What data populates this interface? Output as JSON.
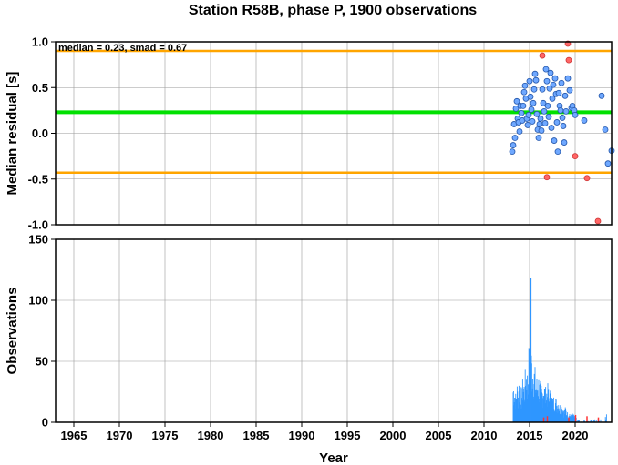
{
  "chart_data": [
    {
      "type": "scatter",
      "title": "Station R58B, phase P, 1900 observations",
      "ylabel": "Median residual [s]",
      "xlim": [
        1963,
        2024
      ],
      "ylim": [
        -1.0,
        1.0
      ],
      "yticks": [
        "1.0",
        "0.5",
        "0.0",
        "-0.5",
        "-1.0"
      ],
      "ytick_values": [
        1.0,
        0.5,
        0.0,
        -0.5,
        -1.0
      ],
      "annotation": "median = 0.23, smad = 0.67",
      "median": 0.23,
      "bounds": [
        0.9,
        -0.43
      ],
      "grid": true,
      "colors": {
        "median_line": "#00e000",
        "bound_lines": "#ffa500",
        "inlier": "#6fa8ff",
        "outlier": "#ff6666"
      },
      "series": [
        {
          "role": "inliers",
          "points": [
            [
              2013.1,
              -0.2
            ],
            [
              2013.2,
              -0.13
            ],
            [
              2013.3,
              0.1
            ],
            [
              2013.4,
              -0.05
            ],
            [
              2013.5,
              0.27
            ],
            [
              2013.6,
              0.35
            ],
            [
              2013.7,
              0.16
            ],
            [
              2013.8,
              0.12
            ],
            [
              2013.9,
              0.02
            ],
            [
              2014.0,
              0.3
            ],
            [
              2014.1,
              0.22
            ],
            [
              2014.2,
              0.14
            ],
            [
              2014.3,
              0.3
            ],
            [
              2014.4,
              0.45
            ],
            [
              2014.5,
              0.52
            ],
            [
              2014.6,
              0.38
            ],
            [
              2014.7,
              0.16
            ],
            [
              2014.8,
              0.09
            ],
            [
              2014.9,
              0.2
            ],
            [
              2015.0,
              0.57
            ],
            [
              2015.1,
              0.4
            ],
            [
              2015.2,
              0.26
            ],
            [
              2015.3,
              0.13
            ],
            [
              2015.4,
              0.33
            ],
            [
              2015.5,
              0.48
            ],
            [
              2015.6,
              0.65
            ],
            [
              2015.7,
              0.58
            ],
            [
              2015.8,
              0.21
            ],
            [
              2015.9,
              0.04
            ],
            [
              2016.0,
              -0.05
            ],
            [
              2016.1,
              0.1
            ],
            [
              2016.2,
              0.16
            ],
            [
              2016.3,
              0.03
            ],
            [
              2016.4,
              0.48
            ],
            [
              2016.5,
              0.33
            ],
            [
              2016.6,
              0.24
            ],
            [
              2016.7,
              0.11
            ],
            [
              2016.8,
              0.7
            ],
            [
              2016.9,
              0.57
            ],
            [
              2017.0,
              0.3
            ],
            [
              2017.1,
              0.18
            ],
            [
              2017.2,
              0.49
            ],
            [
              2017.3,
              0.66
            ],
            [
              2017.4,
              0.06
            ],
            [
              2017.5,
              0.38
            ],
            [
              2017.6,
              0.53
            ],
            [
              2017.7,
              -0.08
            ],
            [
              2017.8,
              0.6
            ],
            [
              2017.9,
              0.43
            ],
            [
              2018.0,
              0.12
            ],
            [
              2018.1,
              -0.2
            ],
            [
              2018.2,
              0.44
            ],
            [
              2018.3,
              0.3
            ],
            [
              2018.4,
              0.25
            ],
            [
              2018.5,
              0.55
            ],
            [
              2018.6,
              0.17
            ],
            [
              2018.7,
              0.08
            ],
            [
              2018.8,
              -0.1
            ],
            [
              2018.9,
              0.41
            ],
            [
              2019.0,
              0.24
            ],
            [
              2019.2,
              0.6
            ],
            [
              2019.4,
              0.47
            ],
            [
              2019.6,
              0.28
            ],
            [
              2019.7,
              0.3
            ],
            [
              2019.9,
              0.25
            ],
            [
              2020.0,
              0.2
            ],
            [
              2021.0,
              0.14
            ],
            [
              2022.9,
              0.41
            ],
            [
              2023.3,
              0.04
            ],
            [
              2023.6,
              -0.33
            ],
            [
              2024.0,
              -0.19
            ]
          ]
        },
        {
          "role": "outliers",
          "points": [
            [
              2016.4,
              0.85
            ],
            [
              2016.9,
              -0.48
            ],
            [
              2019.2,
              0.98
            ],
            [
              2019.3,
              0.8
            ],
            [
              2020.0,
              -0.25
            ],
            [
              2021.3,
              -0.49
            ],
            [
              2022.5,
              -0.96
            ]
          ]
        }
      ]
    },
    {
      "type": "bar",
      "ylabel": "Observations",
      "xlabel": "Year",
      "xlim": [
        1963,
        2024
      ],
      "ylim": [
        0,
        150
      ],
      "yticks": [
        "150",
        "100",
        "50",
        "0"
      ],
      "ytick_values": [
        150,
        100,
        50,
        0
      ],
      "xticks": [
        "1965",
        "1970",
        "1975",
        "1980",
        "1985",
        "1990",
        "1995",
        "2000",
        "2005",
        "2010",
        "2015",
        "2020"
      ],
      "xtick_values": [
        1965,
        1970,
        1975,
        1980,
        1985,
        1990,
        1995,
        2000,
        2005,
        2010,
        2015,
        2020
      ],
      "grid": true,
      "colors": {
        "bars": "#2f96ff",
        "outlier_bars": "#ff3333"
      },
      "peak": {
        "x": 2015.15,
        "value": 118
      },
      "envelope": [
        [
          2013.2,
          34
        ],
        [
          2013.35,
          30
        ],
        [
          2013.5,
          22
        ],
        [
          2013.6,
          33
        ],
        [
          2013.75,
          27
        ],
        [
          2013.85,
          36
        ],
        [
          2014.0,
          30
        ],
        [
          2014.15,
          25
        ],
        [
          2014.3,
          38
        ],
        [
          2014.45,
          32
        ],
        [
          2014.6,
          48
        ],
        [
          2014.75,
          40
        ],
        [
          2014.9,
          58
        ],
        [
          2015.15,
          62
        ],
        [
          2015.35,
          52
        ],
        [
          2015.55,
          45
        ],
        [
          2015.75,
          35
        ],
        [
          2015.95,
          40
        ],
        [
          2016.15,
          32
        ],
        [
          2016.35,
          29
        ],
        [
          2016.55,
          36
        ],
        [
          2016.75,
          27
        ],
        [
          2016.95,
          31
        ],
        [
          2017.15,
          24
        ],
        [
          2017.35,
          26
        ],
        [
          2017.55,
          19
        ],
        [
          2017.75,
          23
        ],
        [
          2017.95,
          18
        ],
        [
          2018.15,
          20
        ],
        [
          2018.35,
          14
        ],
        [
          2018.55,
          16
        ],
        [
          2018.75,
          10
        ],
        [
          2018.95,
          12
        ],
        [
          2019.15,
          8
        ],
        [
          2019.35,
          9
        ],
        [
          2019.55,
          6
        ],
        [
          2019.75,
          7
        ],
        [
          2019.95,
          5
        ],
        [
          2020.2,
          4
        ],
        [
          2020.45,
          3
        ],
        [
          2020.7,
          2
        ],
        [
          2021.0,
          2
        ],
        [
          2021.5,
          1
        ],
        [
          2022.3,
          3
        ],
        [
          2022.9,
          2
        ],
        [
          2023.3,
          5
        ],
        [
          2023.6,
          7
        ],
        [
          2024.0,
          1
        ]
      ],
      "outlier_bars": [
        [
          2016.55,
          4
        ],
        [
          2016.95,
          5
        ],
        [
          2019.3,
          4
        ],
        [
          2020.05,
          6
        ],
        [
          2021.3,
          5
        ],
        [
          2022.55,
          4
        ]
      ]
    }
  ]
}
